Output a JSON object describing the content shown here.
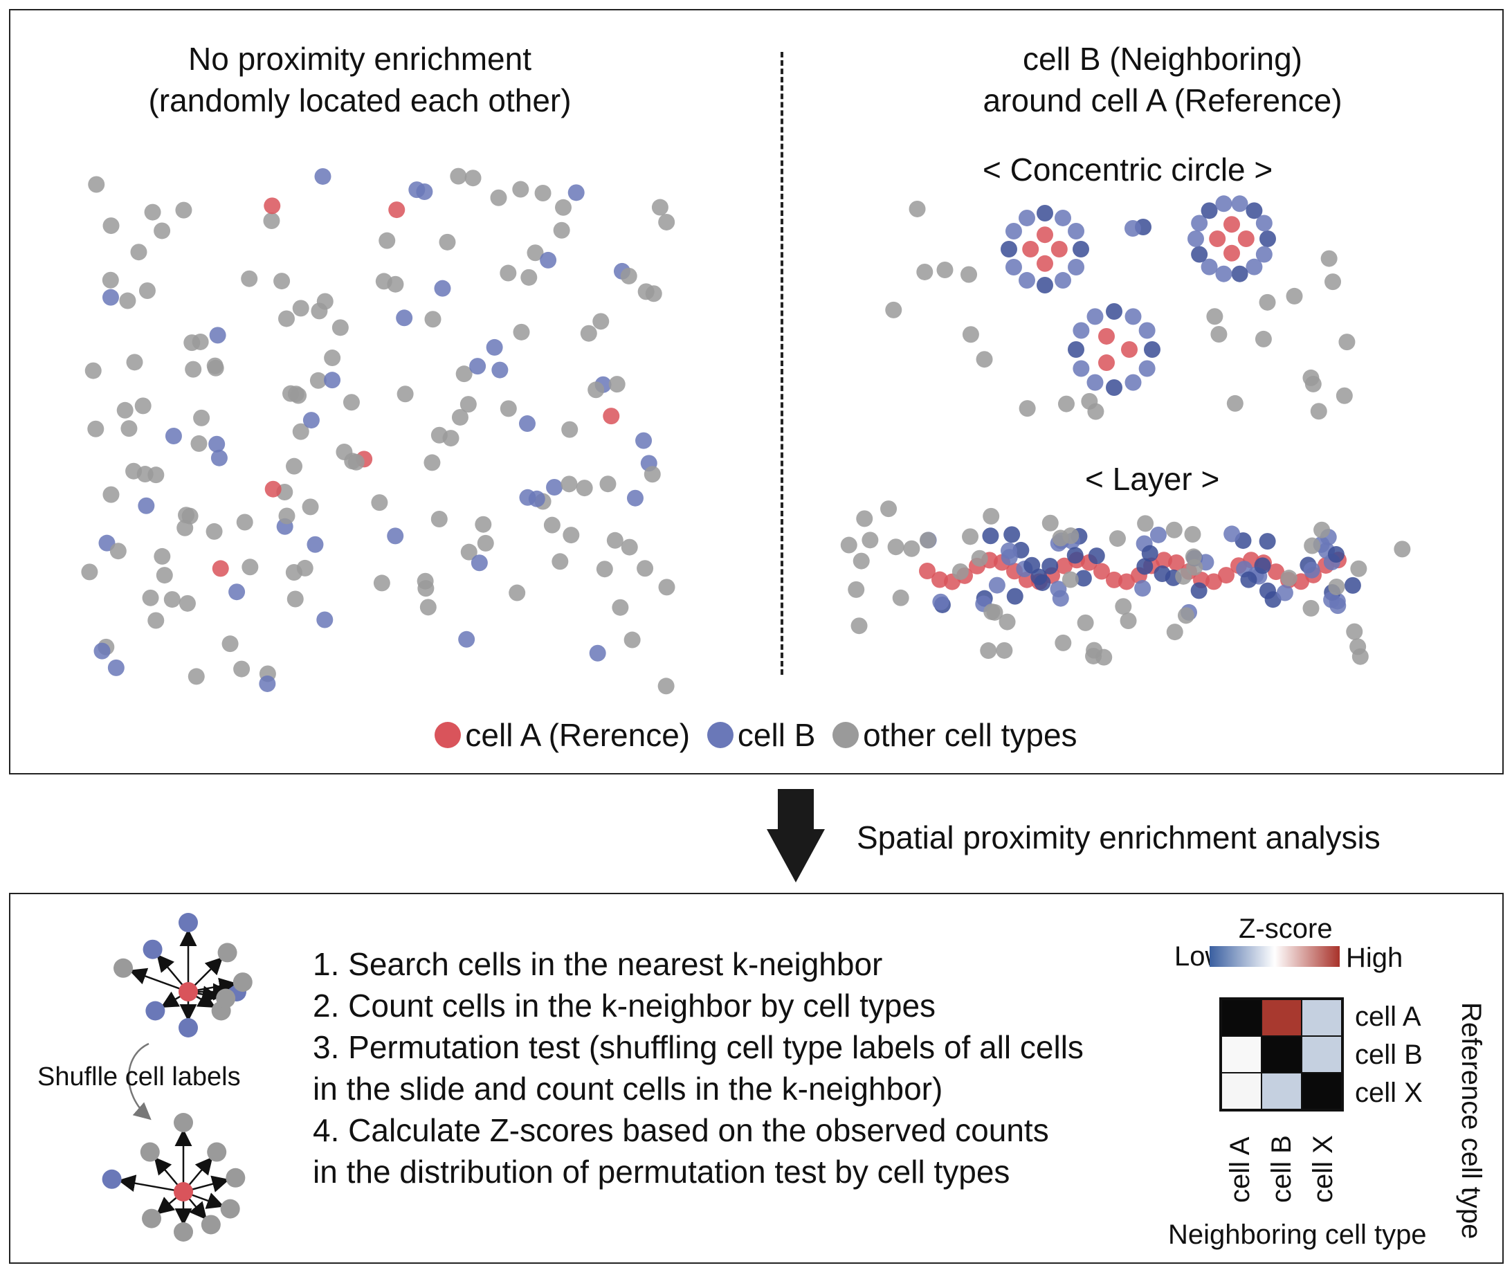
{
  "top_panel": {
    "left_title": [
      "No proximity enrichment",
      "(randomly located each other)"
    ],
    "right_title": [
      "cell B (Neighboring)",
      "around cell A (Reference)"
    ],
    "concentric_label": "< Concentric circle >",
    "layer_label": "< Layer >",
    "legend": [
      {
        "label": "cell A (Rerence)",
        "color": "#d9545b"
      },
      {
        "label": "cell B",
        "color": "#6a78b8"
      },
      {
        "label": "other cell types",
        "color": "#9a9a9a"
      }
    ]
  },
  "flow": {
    "label": "Spatial proximity enrichment analysis"
  },
  "bottom_panel": {
    "steps": [
      "1. Search cells in the nearest k-neighbor",
      "2. Count cells in the k-neighbor by cell types",
      "3. Permutation test (shuffling cell type labels of all cells",
      "in the slide and count cells in the k-neighbor)",
      "4. Calculate Z-scores based on the observed counts",
      "in the distribution of permutation test by cell types"
    ],
    "shuffle_label": "Shuflle cell labels",
    "colorbar": {
      "title": "Z-score",
      "low": "Low",
      "high": "High"
    },
    "heatmap": {
      "rows": [
        "cell A",
        "cell B",
        "cell X"
      ],
      "cols": [
        "cell A",
        "cell B",
        "cell X"
      ],
      "x_title": "Neighboring cell type",
      "y_title": "Reference cell type",
      "cells": [
        [
          "#0a0a0a",
          "#a8392f",
          "#c5d0e0"
        ],
        [
          "#f8f8f8",
          "#0a0a0a",
          "#c5d0e0"
        ],
        [
          "#f6f6f6",
          "#c5d0e0",
          "#0a0a0a"
        ]
      ]
    }
  },
  "colors": {
    "cell_a": "#d9545b",
    "cell_b": "#6a78b8",
    "cell_b_dark": "#3b4d95",
    "other": "#9a9a9a"
  }
}
